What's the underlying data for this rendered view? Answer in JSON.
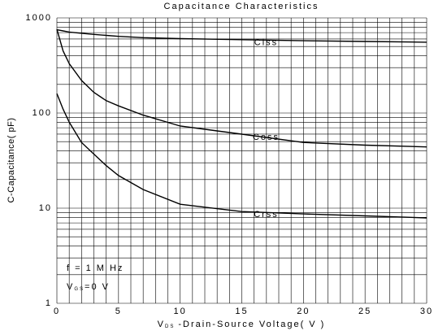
{
  "chart_data": {
    "type": "line",
    "title": "Capacitance Characteristics",
    "x_label": {
      "main": "V",
      "sub": "DS",
      "rest": "-Drain-Source Voltage( V )"
    },
    "y_label": "C-Capacitance( pF)",
    "annotations": [
      {
        "text": "f = 1 M Hz"
      },
      {
        "main": "V",
        "sub": "GS",
        "rest": "=0 V"
      }
    ],
    "log_y": true,
    "grid": true,
    "color": "#000000",
    "xlim": [
      0,
      30
    ],
    "xticks": [
      0,
      5,
      10,
      15,
      20,
      25,
      30
    ],
    "xminorticks": [
      1,
      2,
      3,
      4,
      6,
      7,
      8,
      9,
      11,
      12,
      13,
      14,
      16,
      17,
      18,
      19,
      21,
      22,
      23,
      24,
      26,
      27,
      28,
      29
    ],
    "ylim": [
      1,
      1000
    ],
    "yticks": [
      1,
      10,
      100,
      1000
    ],
    "yminorticks": [
      2,
      3,
      4,
      5,
      6,
      7,
      8,
      9,
      20,
      30,
      40,
      50,
      60,
      70,
      80,
      90,
      200,
      300,
      400,
      500,
      600,
      700,
      800,
      900
    ],
    "x": [
      0,
      0.5,
      1,
      2,
      3,
      4,
      5,
      7,
      10,
      15,
      20,
      25,
      30
    ],
    "series": [
      {
        "name": "Ciss",
        "values": [
          750,
          730,
          710,
          690,
          670,
          655,
          640,
          620,
          605,
          590,
          575,
          565,
          555
        ]
      },
      {
        "name": "Coss",
        "values": [
          760,
          450,
          330,
          220,
          165,
          135,
          119,
          95,
          73,
          60,
          49,
          46,
          44
        ]
      },
      {
        "name": "Crss",
        "values": [
          160,
          110,
          80,
          49,
          37,
          28,
          22,
          15.7,
          11,
          9.2,
          8.7,
          8.3,
          7.9
        ]
      }
    ]
  }
}
